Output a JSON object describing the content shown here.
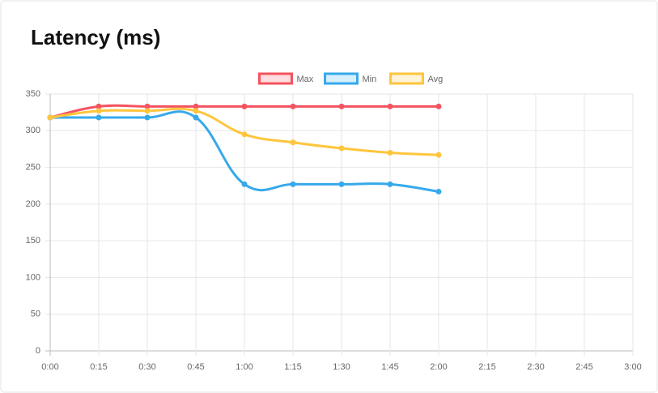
{
  "chart_data": {
    "type": "line",
    "title": "Latency (ms)",
    "categories": [
      "0:00",
      "0:15",
      "0:30",
      "0:45",
      "1:00",
      "1:15",
      "1:30",
      "1:45",
      "2:00",
      "2:15",
      "2:30",
      "2:45",
      "3:00"
    ],
    "series": [
      {
        "name": "Max",
        "color": "#f4535f",
        "values": [
          318,
          333,
          333,
          333,
          333,
          333,
          333,
          333,
          333,
          null,
          null,
          null,
          null
        ]
      },
      {
        "name": "Min",
        "color": "#36a9eb",
        "values": [
          318,
          318,
          318,
          318,
          227,
          227,
          227,
          227,
          217,
          null,
          null,
          null,
          null
        ]
      },
      {
        "name": "Avg",
        "color": "#ffc53d",
        "values": [
          318,
          327,
          327,
          327,
          295,
          284,
          276,
          270,
          267,
          null,
          null,
          null,
          null
        ]
      }
    ],
    "ylim": [
      0,
      350
    ],
    "yticks": [
      0,
      50,
      100,
      150,
      200,
      250,
      300,
      350
    ],
    "grid": true,
    "legend": "top"
  }
}
